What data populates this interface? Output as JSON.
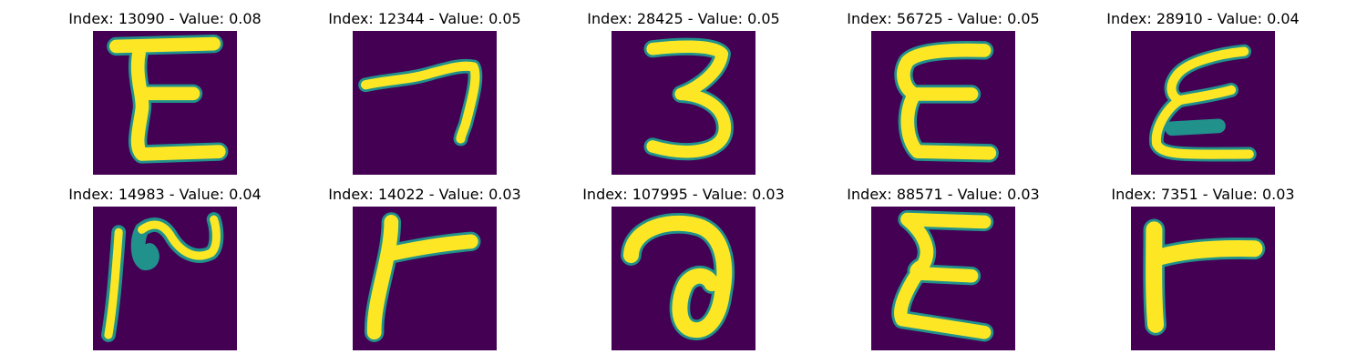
{
  "colors": {
    "background": "#440154",
    "stroke_core": "#fde725",
    "stroke_mid": "#5ec962",
    "stroke_edge": "#21918c"
  },
  "panels": [
    {
      "title": "Index: 13090 - Value: 0.08",
      "glyph": "E"
    },
    {
      "title": "Index: 12344 - Value: 0.05",
      "glyph": "7"
    },
    {
      "title": "Index: 28425 - Value: 0.05",
      "glyph": "3"
    },
    {
      "title": "Index: 56725 - Value: 0.05",
      "glyph": "E"
    },
    {
      "title": "Index: 28910 - Value: 0.04",
      "glyph": "E"
    },
    {
      "title": "Index: 14983 - Value: 0.04",
      "glyph": "2"
    },
    {
      "title": "Index: 14022 - Value: 0.03",
      "glyph": "T"
    },
    {
      "title": "Index: 107995 - Value: 0.03",
      "glyph": "a"
    },
    {
      "title": "Index: 88571 - Value: 0.03",
      "glyph": "E"
    },
    {
      "title": "Index: 7351 - Value: 0.03",
      "glyph": "T"
    }
  ]
}
